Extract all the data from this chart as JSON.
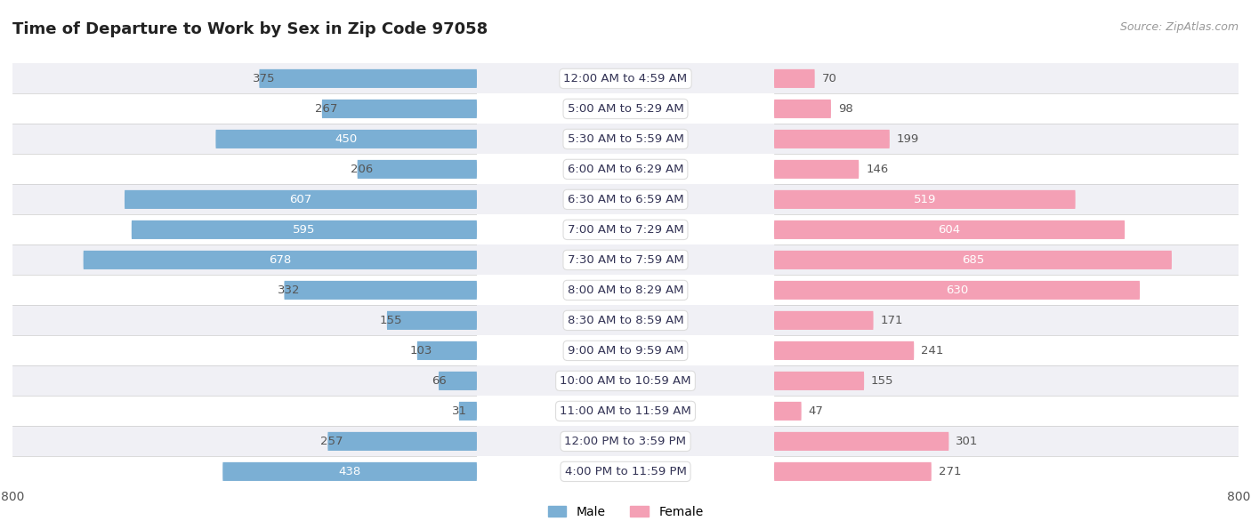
{
  "title": "Time of Departure to Work by Sex in Zip Code 97058",
  "source": "Source: ZipAtlas.com",
  "categories": [
    "12:00 AM to 4:59 AM",
    "5:00 AM to 5:29 AM",
    "5:30 AM to 5:59 AM",
    "6:00 AM to 6:29 AM",
    "6:30 AM to 6:59 AM",
    "7:00 AM to 7:29 AM",
    "7:30 AM to 7:59 AM",
    "8:00 AM to 8:29 AM",
    "8:30 AM to 8:59 AM",
    "9:00 AM to 9:59 AM",
    "10:00 AM to 10:59 AM",
    "11:00 AM to 11:59 AM",
    "12:00 PM to 3:59 PM",
    "4:00 PM to 11:59 PM"
  ],
  "male": [
    375,
    267,
    450,
    206,
    607,
    595,
    678,
    332,
    155,
    103,
    66,
    31,
    257,
    438
  ],
  "female": [
    70,
    98,
    199,
    146,
    519,
    604,
    685,
    630,
    171,
    241,
    155,
    47,
    301,
    271
  ],
  "male_color": "#7bafd4",
  "female_color": "#f4a0b5",
  "male_color_dark": "#5a8fbf",
  "female_color_dark": "#e87aa0",
  "axis_max": 800,
  "bar_height": 0.62,
  "row_bg_even": "#f0f0f5",
  "row_bg_odd": "#ffffff",
  "label_fontsize": 9.5,
  "cat_fontsize": 9.5,
  "title_fontsize": 13,
  "legend_fontsize": 10,
  "source_fontsize": 9,
  "white_label_threshold": 400
}
